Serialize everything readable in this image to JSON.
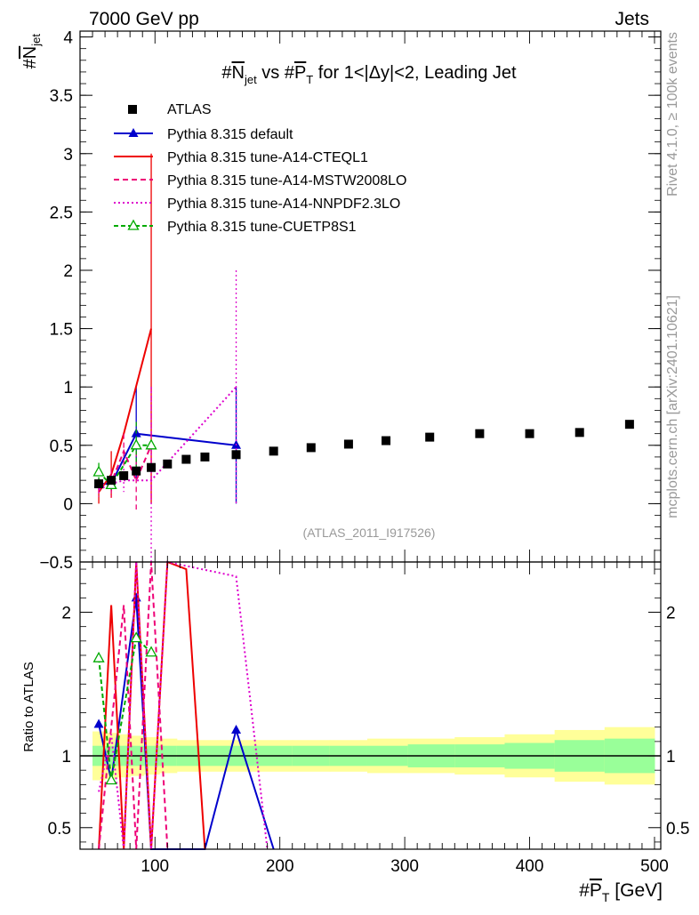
{
  "header": {
    "left": "7000 GeV pp",
    "right": "Jets"
  },
  "side_labels": {
    "rivet": "Rivet 4.1.0, ≥ 100k events",
    "mcplots": "mcplots.cern.ch [arXiv:2401.10621]"
  },
  "analysis_id": "(ATLAS_2011_I917526)",
  "chart_data": {
    "type": "line",
    "title": "#N̅jet vs #P̅T for 1<|Δy|<2, Leading Jet",
    "title_parts": {
      "pre": "#",
      "n": "N",
      "n_sub": "jet",
      "mid": " vs #",
      "p": "P",
      "p_sub": "T",
      "post": " for 1<|Δy|<2, Leading Jet"
    },
    "ylabel": {
      "main": "#",
      "n": "N",
      "sub": "jet"
    },
    "xlabel": {
      "main": "#",
      "p": "P",
      "sub": "T",
      "unit": " [GeV]"
    },
    "ratio_ylabel": "Ratio to ATLAS",
    "xlim": [
      40,
      505
    ],
    "ylim": [
      -0.5,
      4.05
    ],
    "ratio_ylim": [
      0.35,
      2.35
    ],
    "x_ticks": [
      100,
      200,
      300,
      400,
      500
    ],
    "y_ticks": [
      -0.5,
      0,
      0.5,
      1,
      1.5,
      2,
      2.5,
      3,
      3.5,
      4
    ],
    "y_tick_labels": [
      "−0.5",
      "0",
      "0.5",
      "1",
      "1.5",
      "2",
      "2.5",
      "3",
      "3.5",
      "4"
    ],
    "ratio_ticks": [
      0.5,
      1,
      2
    ],
    "data": {
      "name": "ATLAS",
      "color": "#000000",
      "x": [
        55,
        65,
        75,
        85,
        97,
        110,
        125,
        140,
        165,
        195,
        225,
        255,
        285,
        320,
        360,
        400,
        440,
        480
      ],
      "y": [
        0.17,
        0.2,
        0.24,
        0.28,
        0.31,
        0.34,
        0.38,
        0.4,
        0.42,
        0.45,
        0.48,
        0.51,
        0.54,
        0.57,
        0.6,
        0.6,
        0.61,
        0.68
      ],
      "band_inner": [
        0.07,
        0.07,
        0.07,
        0.07,
        0.07,
        0.07,
        0.07,
        0.07,
        0.07,
        0.07,
        0.07,
        0.07,
        0.07,
        0.08,
        0.08,
        0.09,
        0.11,
        0.12
      ],
      "band_outer": [
        0.17,
        0.16,
        0.15,
        0.14,
        0.13,
        0.12,
        0.11,
        0.11,
        0.11,
        0.11,
        0.11,
        0.11,
        0.12,
        0.12,
        0.13,
        0.15,
        0.18,
        0.2
      ]
    },
    "series": [
      {
        "name": "Pythia 8.315 default",
        "color": "#0000cc",
        "dash": "none",
        "marker": "triangle-filled",
        "x": [
          55,
          65,
          85,
          165
        ],
        "y": [
          0.17,
          0.17,
          0.6,
          0.5
        ],
        "err": [
          0.05,
          0.06,
          0.4,
          0.5
        ],
        "ratio_x": [
          55,
          65,
          85,
          97,
          140,
          165,
          195
        ],
        "ratio_y": [
          1.22,
          0.83,
          2.1,
          0.3,
          0.3,
          1.18,
          0.3
        ]
      },
      {
        "name": "Pythia 8.315 tune-A14-CTEQL1",
        "color": "#ee0000",
        "dash": "none",
        "marker": "none",
        "x": [
          55,
          65,
          75,
          97
        ],
        "y": [
          0.1,
          0.25,
          0.6,
          1.5
        ],
        "err": [
          0.1,
          0.2,
          0.0,
          1.5
        ],
        "ratio_x": [
          55,
          65,
          75,
          85,
          97,
          110,
          125,
          140
        ],
        "ratio_y": [
          0.3,
          2.05,
          0.3,
          2.4,
          0.3,
          2.4,
          2.3,
          0.3
        ]
      },
      {
        "name": "Pythia 8.315 tune-A14-MSTW2008LO",
        "color": "#ee0077",
        "dash": "6,4",
        "marker": "none",
        "x": [
          55,
          65,
          75,
          85,
          97
        ],
        "y": [
          0.15,
          0.18,
          0.45,
          0.2,
          0.5
        ],
        "err": [
          0.07,
          0.12,
          0.15,
          0.25,
          0.5
        ],
        "ratio_x": [
          55,
          65,
          75,
          85,
          97,
          110
        ],
        "ratio_y": [
          0.3,
          1.2,
          2.05,
          0.3,
          2.4,
          0.3
        ]
      },
      {
        "name": "Pythia 8.315 tune-A14-NNPDF2.3LO",
        "color": "#dd00cc",
        "dash": "2,3",
        "marker": "none",
        "x": [
          55,
          65,
          75,
          97,
          165
        ],
        "y": [
          0.12,
          0.17,
          0.2,
          0.2,
          1.0
        ],
        "err": [
          0.06,
          0.08,
          0.1,
          0.8,
          1.0
        ],
        "ratio_x": [
          55,
          65,
          75,
          85,
          97,
          110,
          165,
          190
        ],
        "ratio_y": [
          0.75,
          1.15,
          0.3,
          2.4,
          0.3,
          2.4,
          2.25,
          0.3
        ]
      },
      {
        "name": "Pythia 8.315 tune-CUETP8S1",
        "color": "#00aa00",
        "dash": "5,3",
        "marker": "triangle-open",
        "x": [
          55,
          65,
          85,
          97
        ],
        "y": [
          0.27,
          0.16,
          0.5,
          0.5
        ],
        "err": [
          0.08,
          0.06,
          0.2,
          0.0
        ],
        "ratio_x": [
          55,
          65,
          85,
          97
        ],
        "ratio_y": [
          1.68,
          0.83,
          1.82,
          1.72
        ]
      }
    ],
    "legend": {
      "placement": "top-left"
    }
  }
}
